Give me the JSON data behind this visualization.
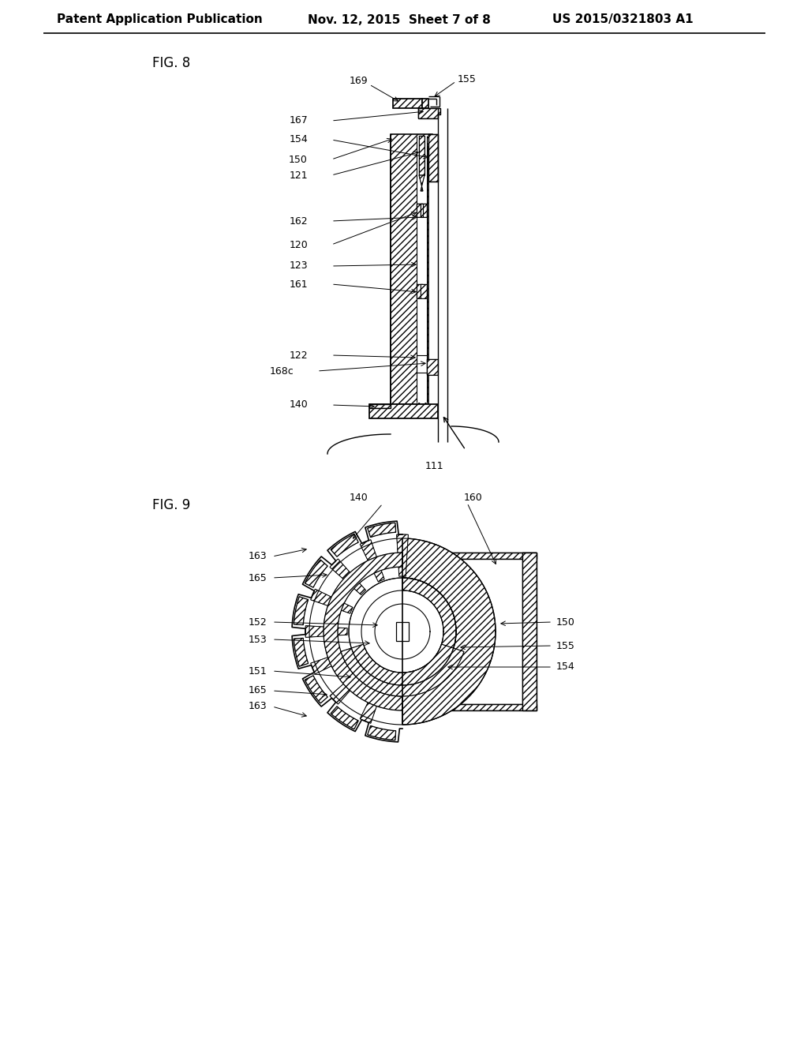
{
  "background_color": "#ffffff",
  "header_text": "Patent Application Publication",
  "header_date": "Nov. 12, 2015  Sheet 7 of 8",
  "header_patent": "US 2015/0321803 A1",
  "fig8_label": "FIG. 8",
  "fig9_label": "FIG. 9",
  "header_font_size": 11,
  "line_color": "#000000",
  "label_font_size": 9.5
}
